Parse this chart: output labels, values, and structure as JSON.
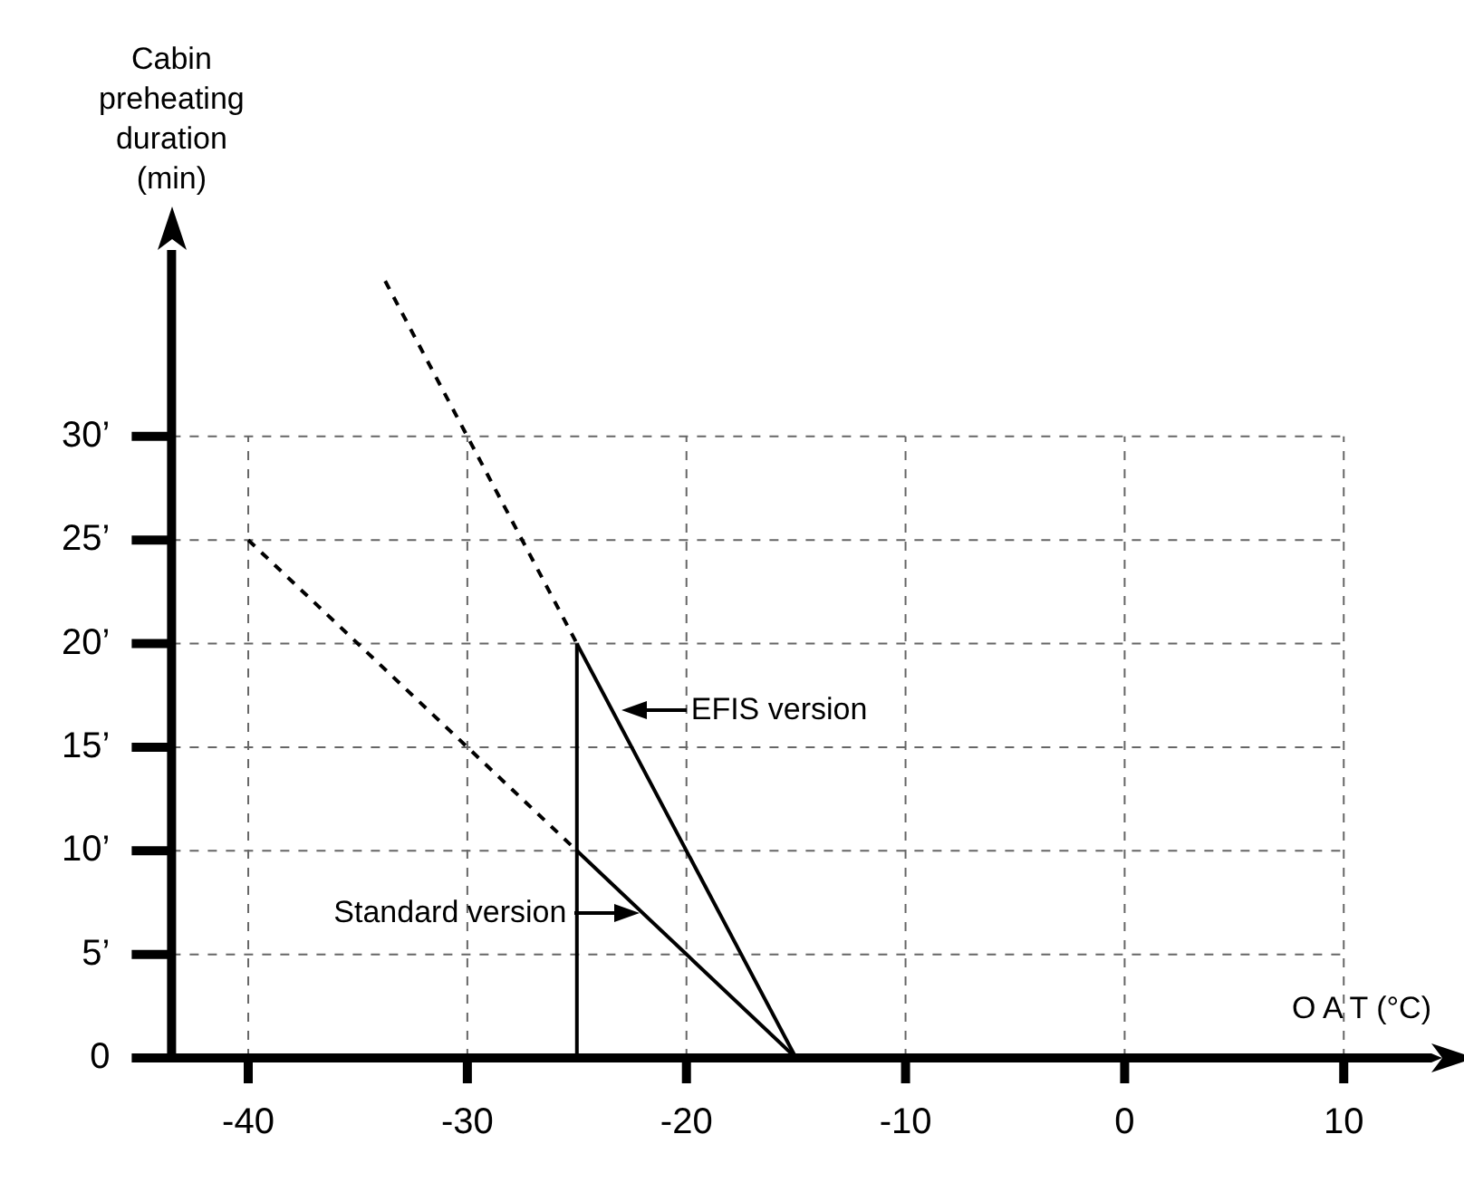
{
  "chart_data": {
    "type": "line",
    "xlabel": "O A T (°C)",
    "ylabel": "Cabin\npreheating\nduration\n(min)",
    "xlim": [
      -43.5,
      14
    ],
    "ylim": [
      0,
      39
    ],
    "xticks": [
      -40,
      -30,
      -20,
      -10,
      0,
      10
    ],
    "yticks": [
      0,
      {
        "value": 5,
        "label": "5’"
      },
      {
        "value": 10,
        "label": "10’"
      },
      {
        "value": 15,
        "label": "15’"
      },
      {
        "value": 20,
        "label": "20’"
      },
      {
        "value": 25,
        "label": "25’"
      },
      {
        "value": 30,
        "label": "30’"
      }
    ],
    "grid": true,
    "legend": false,
    "marker": "none",
    "series": [
      {
        "color": "#000000",
        "x": [
          -33.75,
          -25
        ],
        "values": [
          37.5,
          20
        ],
        "line_style": "dashed"
      },
      {
        "color": "#000000",
        "x": [
          -25,
          -15
        ],
        "values": [
          20,
          0
        ],
        "line_style": "solid"
      },
      {
        "color": "#000000",
        "x": [
          -40,
          -25
        ],
        "values": [
          25,
          10
        ],
        "line_style": "dashed"
      },
      {
        "color": "#000000",
        "x": [
          -25,
          -15
        ],
        "values": [
          10,
          0
        ],
        "line_style": "solid"
      },
      {
        "color": "#000000",
        "x": [
          -25,
          -25
        ],
        "values": [
          0,
          20
        ],
        "line_style": "solid"
      }
    ],
    "annotations": [
      {
        "text": "EFIS version",
        "x": -23.1,
        "y": 16.8
      },
      {
        "text": "Standard version",
        "x": -22,
        "y": 7
      }
    ]
  }
}
